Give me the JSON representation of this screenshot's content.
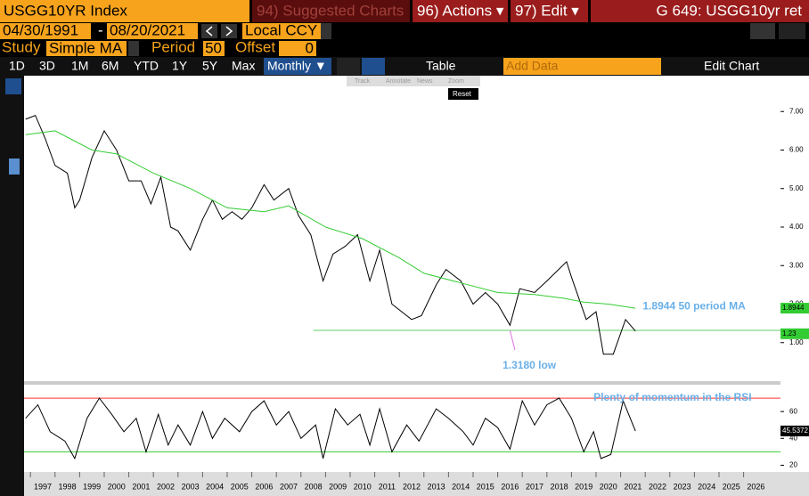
{
  "ui": {
    "ticker": "USGG10YR Index",
    "suggested": "94) Suggested Charts",
    "actions": "96) Actions ▾",
    "edit": "97) Edit ▾",
    "page": "G 649: USGG10yr ret",
    "start_date": "04/30/1991",
    "dash": "-",
    "end_date": "08/20/2021",
    "currency": "Local CCY",
    "study_label": "Study",
    "study": "Simple MA",
    "period_label": "Period",
    "period": "50",
    "offset_label": "Offset",
    "offset": "0",
    "ranges": [
      "1D",
      "3D",
      "1M",
      "6M",
      "YTD",
      "1Y",
      "5Y",
      "Max"
    ],
    "frequency": "Monthly ▼",
    "table": "Table",
    "add_data": "Add Data",
    "edit_chart": "Edit Chart",
    "tools": [
      "Track",
      "Annotate",
      "News",
      "Zoom"
    ],
    "reset": "Reset"
  },
  "chart_data": [
    {
      "type": "line",
      "name": "price",
      "xlim": [
        1996.74,
        2027.5
      ],
      "ylim": [
        0,
        7.93
      ],
      "xticks": [
        1997,
        1998,
        1999,
        2000,
        2001,
        2002,
        2003,
        2004,
        2005,
        2006,
        2007,
        2008,
        2009,
        2010,
        2011,
        2012,
        2013,
        2014,
        2015,
        2016,
        2017,
        2018,
        2019,
        2020,
        2021,
        2022,
        2023,
        2024,
        2025,
        2026
      ],
      "yticks": [
        {
          "value": 1,
          "label": "1.00"
        },
        {
          "value": 2,
          "label": "2.00"
        },
        {
          "value": 3,
          "label": "3.00"
        },
        {
          "value": 4,
          "label": "4.00"
        },
        {
          "value": 5,
          "label": "5.00"
        },
        {
          "value": 6,
          "label": "6.00"
        },
        {
          "value": 7,
          "label": "7.00"
        }
      ],
      "series": [
        {
          "name": "USGG10YR",
          "color": "#000000",
          "x": [
            1996.8,
            1997.2,
            1997.6,
            1998.0,
            1998.5,
            1998.8,
            1999.0,
            1999.5,
            2000.0,
            2000.5,
            2001.0,
            2001.5,
            2001.9,
            2002.3,
            2002.7,
            2003.0,
            2003.5,
            2004.0,
            2004.4,
            2004.8,
            2005.2,
            2005.6,
            2006.0,
            2006.5,
            2006.9,
            2007.5,
            2007.9,
            2008.4,
            2008.9,
            2009.3,
            2009.8,
            2010.3,
            2010.8,
            2011.2,
            2011.7,
            2012.5,
            2012.9,
            2013.5,
            2013.9,
            2014.5,
            2015.0,
            2015.5,
            2016.0,
            2016.5,
            2016.9,
            2017.5,
            2018.0,
            2018.8,
            2019.0,
            2019.6,
            2020.0,
            2020.3,
            2020.7,
            2021.2,
            2021.6
          ],
          "values": [
            6.8,
            6.9,
            6.3,
            5.6,
            5.4,
            4.5,
            4.7,
            5.8,
            6.5,
            6.0,
            5.2,
            5.2,
            4.6,
            5.3,
            4.0,
            3.9,
            3.4,
            4.2,
            4.7,
            4.2,
            4.4,
            4.2,
            4.5,
            5.1,
            4.7,
            5.0,
            4.3,
            3.8,
            2.6,
            3.3,
            3.5,
            3.8,
            2.6,
            3.4,
            2.0,
            1.6,
            1.7,
            2.5,
            2.9,
            2.6,
            2.0,
            2.3,
            2.0,
            1.45,
            2.4,
            2.3,
            2.6,
            3.1,
            2.7,
            1.6,
            1.8,
            0.7,
            0.7,
            1.6,
            1.3
          ]
        },
        {
          "name": "50 period MA",
          "color": "#33cc33",
          "x": [
            1996.8,
            1998.0,
            1999.5,
            2000.5,
            2002.0,
            2003.5,
            2005.0,
            2006.5,
            2007.5,
            2009.0,
            2010.5,
            2012.0,
            2013.0,
            2014.5,
            2016.0,
            2017.5,
            2018.7,
            2019.5,
            2020.5,
            2021.6
          ],
          "values": [
            6.4,
            6.5,
            6.0,
            5.9,
            5.4,
            5.0,
            4.5,
            4.4,
            4.55,
            4.0,
            3.7,
            3.2,
            2.8,
            2.55,
            2.3,
            2.25,
            2.15,
            2.05,
            2.0,
            1.8944
          ]
        }
      ],
      "hline": {
        "value": 1.318,
        "from": 2008.5,
        "color": "#66cc66"
      },
      "last_labels": [
        {
          "text": "1.8944",
          "value": 1.8944,
          "color": "#33cc33"
        },
        {
          "text": "1.23",
          "value": 1.23,
          "color": "#33cc33"
        }
      ],
      "annotations": [
        {
          "text": "1.8944 50 period MA",
          "x": 2021.9,
          "y": 1.94
        },
        {
          "text": "1.3180 low",
          "x": 2016.2,
          "y": 0.4
        }
      ]
    },
    {
      "type": "line",
      "name": "rsi",
      "xlim": [
        1996.74,
        2027.5
      ],
      "ylim": [
        15,
        80
      ],
      "yticks": [
        20,
        40,
        60
      ],
      "levels": [
        {
          "value": 70,
          "color": "#ff3333"
        },
        {
          "value": 30,
          "color": "#33cc33"
        }
      ],
      "series": [
        {
          "name": "RSI",
          "color": "#000000",
          "x": [
            1996.8,
            1997.3,
            1997.8,
            1998.4,
            1998.8,
            1999.3,
            1999.8,
            2000.3,
            2000.8,
            2001.3,
            2001.7,
            2002.2,
            2002.6,
            2003.0,
            2003.5,
            2004.0,
            2004.4,
            2004.9,
            2005.5,
            2006.0,
            2006.5,
            2007.0,
            2007.5,
            2008.0,
            2008.6,
            2008.9,
            2009.4,
            2009.9,
            2010.4,
            2010.8,
            2011.2,
            2011.7,
            2012.3,
            2012.8,
            2013.5,
            2014.0,
            2014.6,
            2015.0,
            2015.5,
            2016.0,
            2016.5,
            2017.0,
            2017.5,
            2018.0,
            2018.5,
            2019.0,
            2019.5,
            2019.9,
            2020.2,
            2020.6,
            2021.1,
            2021.6
          ],
          "values": [
            55,
            65,
            45,
            38,
            25,
            55,
            70,
            58,
            45,
            55,
            30,
            58,
            35,
            50,
            35,
            60,
            40,
            55,
            45,
            60,
            68,
            50,
            60,
            40,
            50,
            25,
            62,
            50,
            58,
            35,
            62,
            30,
            50,
            38,
            62,
            55,
            45,
            35,
            55,
            48,
            32,
            68,
            50,
            65,
            70,
            55,
            30,
            45,
            25,
            28,
            68,
            45.5372
          ]
        }
      ],
      "last_labels": [
        {
          "text": "45.5372",
          "value": 45.5372,
          "color": "#ffffff"
        }
      ],
      "annotations": [
        {
          "text": "Plenty of momentum in the RSI",
          "x": 2019.9,
          "y": 70
        }
      ]
    }
  ]
}
